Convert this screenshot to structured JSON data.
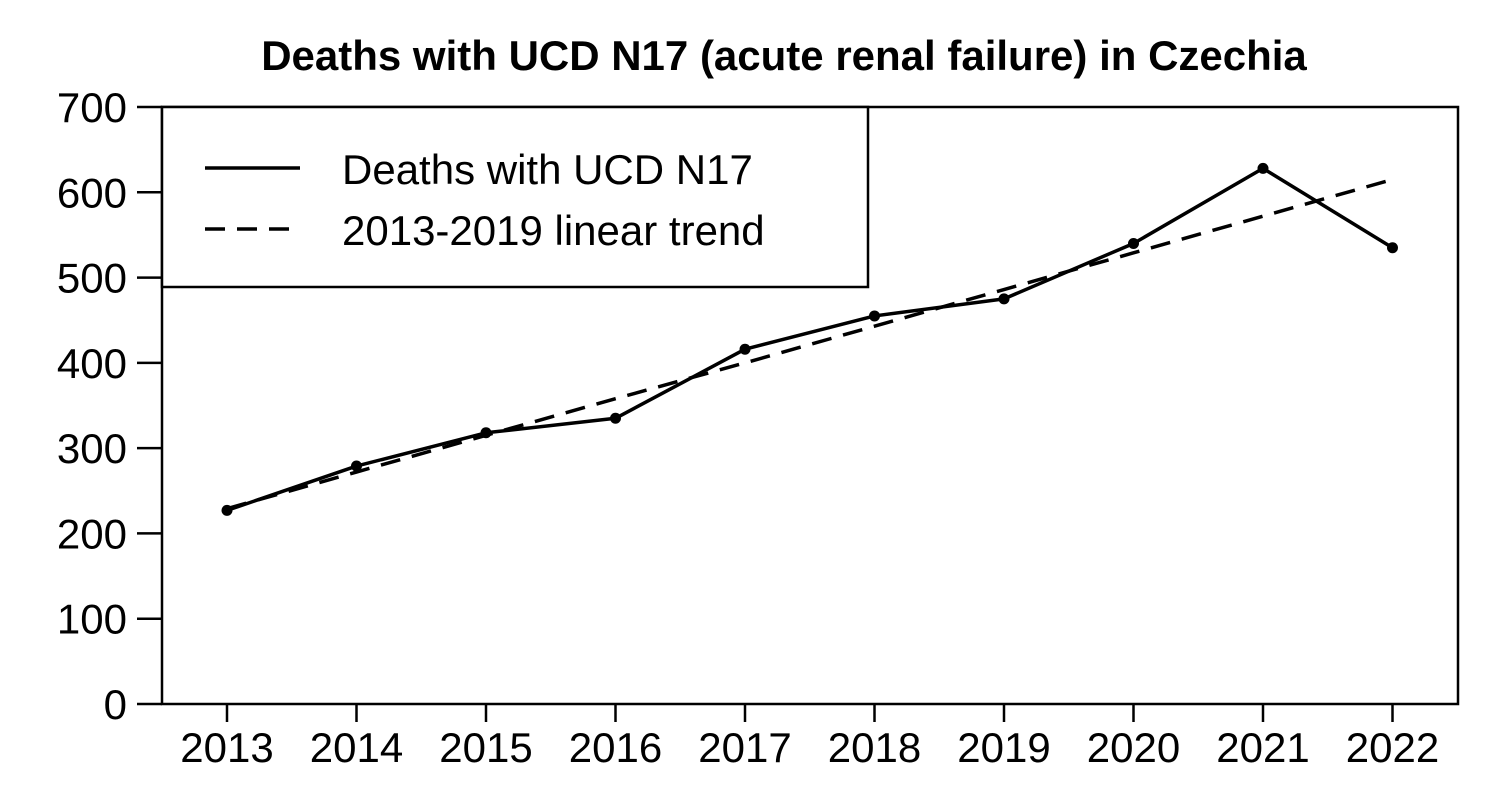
{
  "chart_data": {
    "type": "line",
    "title": "Deaths with UCD N17 (acute renal failure) in Czechia",
    "xlabel": "",
    "ylabel": "",
    "categories": [
      "2013",
      "2014",
      "2015",
      "2016",
      "2017",
      "2018",
      "2019",
      "2020",
      "2021",
      "2022"
    ],
    "ylim": [
      0,
      700
    ],
    "yticks": [
      "0",
      "100",
      "200",
      "300",
      "400",
      "500",
      "600",
      "700"
    ],
    "grid": false,
    "legend_position": "top-left",
    "series": [
      {
        "name": "Deaths with UCD N17",
        "style": "solid",
        "markers": true,
        "values": [
          227,
          279,
          318,
          335,
          416,
          455,
          475,
          540,
          628,
          535
        ]
      },
      {
        "name": "2013-2019 linear trend",
        "style": "dashed",
        "markers": false,
        "values": [
          229,
          272,
          315,
          358,
          400,
          443,
          486,
          529,
          572,
          615
        ]
      }
    ],
    "colors": {
      "line": "#000000",
      "background": "#ffffff"
    }
  }
}
